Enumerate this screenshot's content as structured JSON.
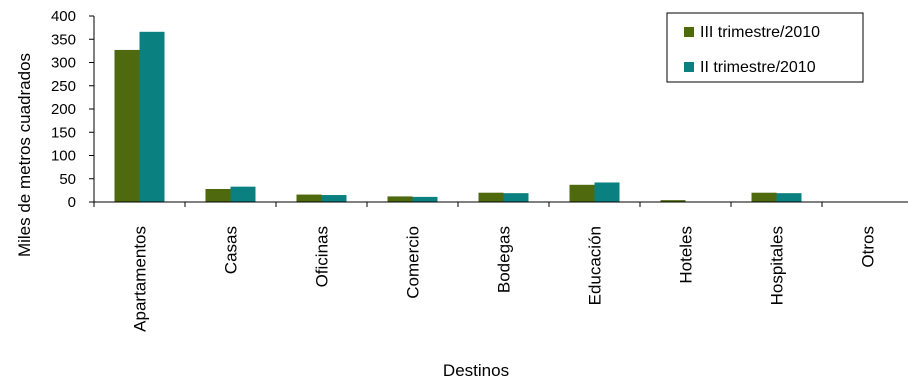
{
  "colors": {
    "series1": "#4f6a0e",
    "series2": "#0b8080",
    "axis": "#000000",
    "background": "#ffffff"
  },
  "chart_data": {
    "type": "bar",
    "title": "",
    "xlabel": "Destinos",
    "ylabel": "Miles de metros cuadrados",
    "ylim": [
      0,
      400
    ],
    "yticks": [
      0,
      50,
      100,
      150,
      200,
      250,
      300,
      350,
      400
    ],
    "grid": false,
    "legend_position": "top-right",
    "categories": [
      "Apartamentos",
      "Casas",
      "Oficinas",
      "Comercio",
      "Bodegas",
      "Educación",
      "Hoteles",
      "Hospitales",
      "Otros"
    ],
    "series": [
      {
        "name": "III trimestre/2010",
        "color": "#4f6a0e",
        "values": [
          327,
          28,
          16,
          12,
          20,
          37,
          4,
          20,
          1
        ]
      },
      {
        "name": "II trimestre/2010",
        "color": "#0b8080",
        "values": [
          366,
          33,
          15,
          11,
          19,
          42,
          1,
          19,
          0
        ]
      }
    ]
  }
}
